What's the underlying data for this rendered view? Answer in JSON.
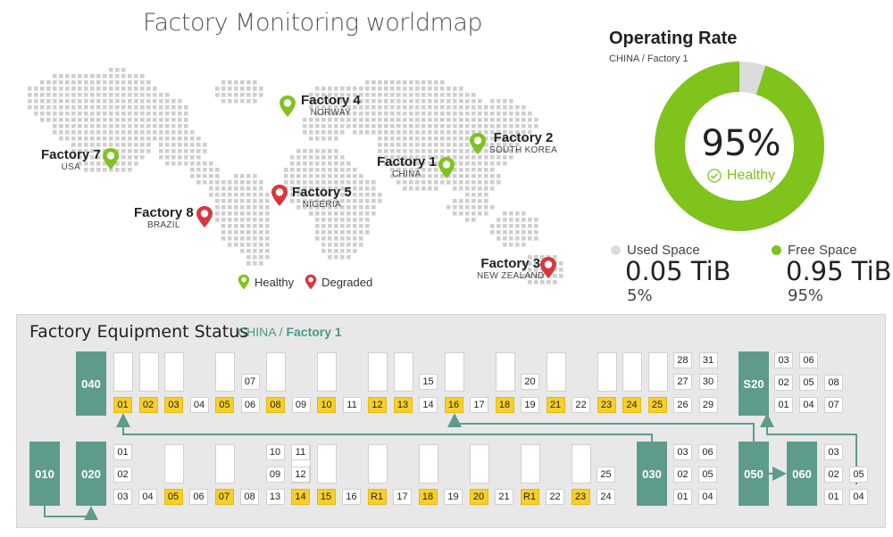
{
  "map": {
    "title": "Factory Monitoring worldmap",
    "factories": [
      {
        "name": "Factory 4",
        "country": "NORWAY",
        "status": "healthy"
      },
      {
        "name": "Factory 2",
        "country": "SOUTH KOREA",
        "status": "healthy"
      },
      {
        "name": "Factory 7",
        "country": "USA",
        "status": "healthy"
      },
      {
        "name": "Factory 1",
        "country": "CHINA",
        "status": "healthy"
      },
      {
        "name": "Factory 5",
        "country": "NIGERIA",
        "status": "degraded"
      },
      {
        "name": "Factory 8",
        "country": "BRAZIL",
        "status": "degraded"
      },
      {
        "name": "Factory 3",
        "country": "NEW ZEALAND",
        "status": "degraded"
      }
    ],
    "legend": {
      "healthy": "Healthy",
      "degraded": "Degraded"
    }
  },
  "operating": {
    "title": "Operating Rate",
    "crumb_country": "CHINA",
    "crumb_sep": "/",
    "crumb_factory": "Factory 1",
    "percent_label": "95%",
    "percent_value": 95,
    "status": "Healthy",
    "used_label": "Used Space",
    "used_value": "0.05 TiB",
    "used_pct": "5%",
    "free_label": "Free Space",
    "free_value": "0.95 TiB",
    "free_pct": "95%"
  },
  "colors": {
    "healthy": "#7fc31c",
    "degraded": "#d9363e",
    "used": "#dcdcdc",
    "node": "#5e9b8c",
    "active": "#f6cf2a"
  },
  "equipment": {
    "title": "Factory Equipment Status",
    "crumb_country": "CHINA /",
    "crumb_factory": "Factory 1",
    "nodes": [
      "040",
      "010",
      "020",
      "030",
      "050",
      "060",
      "S20"
    ],
    "row1": [
      {
        "id": "01",
        "active": true
      },
      {
        "id": "02",
        "active": true
      },
      {
        "id": "03",
        "active": true
      },
      {
        "id": "04",
        "active": false
      },
      {
        "id": "05",
        "active": true
      },
      {
        "id": "06",
        "active": false
      },
      {
        "id": "08",
        "active": true
      },
      {
        "id": "09",
        "active": false
      },
      {
        "id": "10",
        "active": true
      },
      {
        "id": "11",
        "active": false
      },
      {
        "id": "12",
        "active": true
      },
      {
        "id": "13",
        "active": true
      },
      {
        "id": "14",
        "active": false
      },
      {
        "id": "16",
        "active": true
      },
      {
        "id": "17",
        "active": false
      },
      {
        "id": "18",
        "active": true
      },
      {
        "id": "19",
        "active": false
      },
      {
        "id": "21",
        "active": true
      },
      {
        "id": "22",
        "active": false
      },
      {
        "id": "23",
        "active": true
      },
      {
        "id": "24",
        "active": true
      },
      {
        "id": "25",
        "active": true
      },
      {
        "id": "26",
        "active": false
      },
      {
        "id": "29",
        "active": false
      }
    ],
    "row1_upper": [
      {
        "id": "07",
        "col": 5
      },
      {
        "id": "15",
        "col": 12
      },
      {
        "id": "20",
        "col": 16
      },
      {
        "id": "28",
        "col": 22,
        "level": 0
      },
      {
        "id": "31",
        "col": 23,
        "level": 0
      },
      {
        "id": "27",
        "col": 22,
        "level": 1
      },
      {
        "id": "30",
        "col": 23,
        "level": 1
      }
    ],
    "s20_grid": [
      "03",
      "06",
      "02",
      "05",
      "08",
      "01",
      "04",
      "07"
    ],
    "row2_left": [
      "01",
      "02",
      "03"
    ],
    "row2": [
      {
        "id": "04",
        "active": false
      },
      {
        "id": "05",
        "active": true
      },
      {
        "id": "06",
        "active": false
      },
      {
        "id": "07",
        "active": true
      },
      {
        "id": "08",
        "active": false
      },
      {
        "id": "13",
        "active": false
      },
      {
        "id": "14",
        "active": true
      },
      {
        "id": "15",
        "active": true
      },
      {
        "id": "16",
        "active": false
      },
      {
        "id": "R1",
        "active": true
      },
      {
        "id": "17",
        "active": false
      },
      {
        "id": "18",
        "active": true
      },
      {
        "id": "19",
        "active": false
      },
      {
        "id": "20",
        "active": true
      },
      {
        "id": "21",
        "active": false
      },
      {
        "id": "R1",
        "active": true
      },
      {
        "id": "22",
        "active": false
      },
      {
        "id": "23",
        "active": true
      },
      {
        "id": "24",
        "active": false
      }
    ],
    "row2_upper": [
      "10",
      "11",
      "09",
      "12",
      "25"
    ],
    "n030_grid": [
      "03",
      "06",
      "02",
      "05",
      "01",
      "04"
    ],
    "n060_grid": [
      "03",
      "02",
      "05",
      "01",
      "04"
    ]
  }
}
